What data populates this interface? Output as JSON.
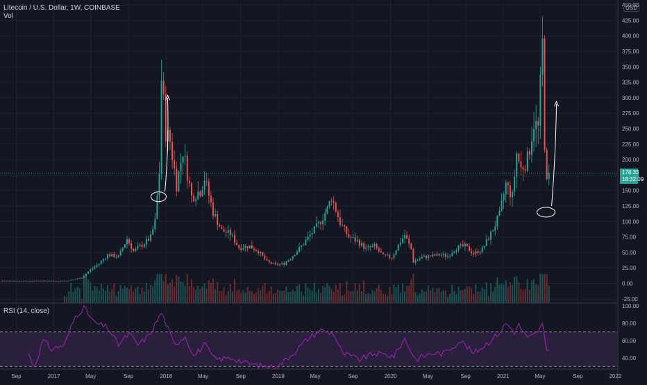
{
  "header": {
    "title": "Litecoin / U.S. Dollar, 1W, COINBASE",
    "volume_label": "Vol",
    "rsi_label": "RSI (14, close)",
    "currency": "USD"
  },
  "last_price": {
    "value": "178.33",
    "countdown": "18:32:09"
  },
  "colors": {
    "background": "#131722",
    "up": "#26a69a",
    "down": "#ef5350",
    "up_volume": "#1e6b65",
    "down_volume": "#8b3234",
    "rsi_line": "#9c27b0",
    "rsi_band": "#2a1f3d",
    "grid": "#1e222d",
    "text": "#b2b5be",
    "annotation": "#ffffff"
  },
  "chart_data": [
    {
      "type": "candlestick",
      "title": "Litecoin / U.S. Dollar, 1W, COINBASE",
      "y_axis_ticks": [
        -25,
        0,
        25,
        50,
        75,
        100,
        125,
        150,
        175,
        200,
        225,
        250,
        275,
        300,
        325,
        350,
        375,
        400,
        425,
        450
      ],
      "y_axis_tick_labels": [
        "-25.00",
        "0.00",
        "25.00",
        "50.00",
        "75.00",
        "100.00",
        "125.00",
        "150.00",
        "175.00",
        "200.00",
        "225.00",
        "250.00",
        "275.00",
        "300.00",
        "325.00",
        "350.00",
        "375.00",
        "400.00",
        "425.00",
        "450.00"
      ],
      "ylim": [
        -32,
        458
      ],
      "x_axis_ticks": [
        "Sep",
        "2017",
        "May",
        "Sep",
        "2018",
        "May",
        "Sep",
        "2019",
        "May",
        "Sep",
        "2020",
        "May",
        "Sep",
        "2021",
        "May",
        "Sep",
        "2022"
      ],
      "xlim": [
        "2016-07-10",
        "2022-01-09"
      ],
      "price_anchors": [
        {
          "date": "2016-07-17",
          "close": 4
        },
        {
          "date": "2016-10-16",
          "close": 4
        },
        {
          "date": "2017-01-15",
          "close": 4
        },
        {
          "date": "2017-02-12",
          "close": 4
        },
        {
          "date": "2017-04-02",
          "close": 9
        },
        {
          "date": "2017-04-30",
          "close": 22
        },
        {
          "date": "2017-05-28",
          "close": 32
        },
        {
          "date": "2017-06-25",
          "close": 46
        },
        {
          "date": "2017-07-30",
          "close": 43
        },
        {
          "date": "2017-08-27",
          "close": 72
        },
        {
          "date": "2017-09-17",
          "close": 52
        },
        {
          "date": "2017-10-15",
          "close": 62
        },
        {
          "date": "2017-11-12",
          "close": 74
        },
        {
          "date": "2017-11-26",
          "close": 100
        },
        {
          "date": "2017-12-10",
          "close": 180
        },
        {
          "date": "2017-12-17",
          "close": 330
        },
        {
          "date": "2017-12-24",
          "close": 290
        },
        {
          "date": "2017-12-31",
          "close": 245
        },
        {
          "date": "2018-01-14",
          "close": 230
        },
        {
          "date": "2018-02-04",
          "close": 160
        },
        {
          "date": "2018-02-25",
          "close": 215
        },
        {
          "date": "2018-03-25",
          "close": 140
        },
        {
          "date": "2018-04-22",
          "close": 150
        },
        {
          "date": "2018-05-06",
          "close": 170
        },
        {
          "date": "2018-06-03",
          "close": 115
        },
        {
          "date": "2018-07-01",
          "close": 85
        },
        {
          "date": "2018-07-29",
          "close": 80
        },
        {
          "date": "2018-08-26",
          "close": 58
        },
        {
          "date": "2018-09-30",
          "close": 60
        },
        {
          "date": "2018-10-28",
          "close": 52
        },
        {
          "date": "2018-11-25",
          "close": 35
        },
        {
          "date": "2018-12-23",
          "close": 30
        },
        {
          "date": "2019-01-20",
          "close": 32
        },
        {
          "date": "2019-02-17",
          "close": 45
        },
        {
          "date": "2019-03-17",
          "close": 60
        },
        {
          "date": "2019-04-14",
          "close": 78
        },
        {
          "date": "2019-05-12",
          "close": 95
        },
        {
          "date": "2019-06-09",
          "close": 120
        },
        {
          "date": "2019-06-23",
          "close": 140
        },
        {
          "date": "2019-07-21",
          "close": 98
        },
        {
          "date": "2019-08-18",
          "close": 75
        },
        {
          "date": "2019-09-15",
          "close": 68
        },
        {
          "date": "2019-10-13",
          "close": 56
        },
        {
          "date": "2019-11-10",
          "close": 60
        },
        {
          "date": "2019-12-08",
          "close": 44
        },
        {
          "date": "2020-01-05",
          "close": 42
        },
        {
          "date": "2020-02-02",
          "close": 68
        },
        {
          "date": "2020-02-16",
          "close": 78
        },
        {
          "date": "2020-03-08",
          "close": 55
        },
        {
          "date": "2020-03-15",
          "close": 35
        },
        {
          "date": "2020-04-12",
          "close": 42
        },
        {
          "date": "2020-05-10",
          "close": 44
        },
        {
          "date": "2020-06-07",
          "close": 46
        },
        {
          "date": "2020-07-05",
          "close": 44
        },
        {
          "date": "2020-08-02",
          "close": 58
        },
        {
          "date": "2020-08-30",
          "close": 60
        },
        {
          "date": "2020-09-27",
          "close": 48
        },
        {
          "date": "2020-10-25",
          "close": 55
        },
        {
          "date": "2020-11-22",
          "close": 80
        },
        {
          "date": "2020-12-20",
          "close": 110
        },
        {
          "date": "2021-01-10",
          "close": 160
        },
        {
          "date": "2021-01-31",
          "close": 140
        },
        {
          "date": "2021-02-14",
          "close": 210
        },
        {
          "date": "2021-02-28",
          "close": 185
        },
        {
          "date": "2021-03-21",
          "close": 200
        },
        {
          "date": "2021-04-11",
          "close": 260
        },
        {
          "date": "2021-04-25",
          "close": 250
        },
        {
          "date": "2021-05-09",
          "close": 385
        },
        {
          "date": "2021-05-16",
          "close": 230
        },
        {
          "date": "2021-05-23",
          "close": 160
        },
        {
          "date": "2021-05-30",
          "close": 178
        }
      ],
      "last_value": 178.33
    },
    {
      "type": "bar",
      "name": "Vol",
      "values_relative": "volume histogram at bottom of price pane, peaks near 2017-12 and 2021-05"
    },
    {
      "type": "line",
      "title": "RSI (14, close)",
      "y_axis_ticks": [
        40,
        60,
        80,
        100
      ],
      "y_axis_tick_labels": [
        "40.00",
        "60.00",
        "80.00",
        "100.00"
      ],
      "ylim": [
        27,
        103
      ],
      "bands": [
        30,
        70
      ],
      "anchors": [
        {
          "date": "2016-10-09",
          "value": 45
        },
        {
          "date": "2016-10-30",
          "value": 30
        },
        {
          "date": "2016-11-27",
          "value": 60
        },
        {
          "date": "2016-12-25",
          "value": 50
        },
        {
          "date": "2017-02-05",
          "value": 55
        },
        {
          "date": "2017-03-12",
          "value": 88
        },
        {
          "date": "2017-04-09",
          "value": 98
        },
        {
          "date": "2017-05-14",
          "value": 80
        },
        {
          "date": "2017-06-25",
          "value": 75
        },
        {
          "date": "2017-07-30",
          "value": 55
        },
        {
          "date": "2017-09-03",
          "value": 68
        },
        {
          "date": "2017-10-01",
          "value": 55
        },
        {
          "date": "2017-11-05",
          "value": 65
        },
        {
          "date": "2017-12-17",
          "value": 92
        },
        {
          "date": "2018-01-28",
          "value": 55
        },
        {
          "date": "2018-03-04",
          "value": 65
        },
        {
          "date": "2018-04-01",
          "value": 42
        },
        {
          "date": "2018-05-06",
          "value": 55
        },
        {
          "date": "2018-06-10",
          "value": 38
        },
        {
          "date": "2018-08-05",
          "value": 40
        },
        {
          "date": "2018-09-16",
          "value": 34
        },
        {
          "date": "2018-11-18",
          "value": 30
        },
        {
          "date": "2018-12-23",
          "value": 28
        },
        {
          "date": "2019-02-17",
          "value": 45
        },
        {
          "date": "2019-04-07",
          "value": 62
        },
        {
          "date": "2019-05-19",
          "value": 72
        },
        {
          "date": "2019-06-30",
          "value": 68
        },
        {
          "date": "2019-07-28",
          "value": 45
        },
        {
          "date": "2019-09-22",
          "value": 38
        },
        {
          "date": "2019-11-10",
          "value": 45
        },
        {
          "date": "2020-01-12",
          "value": 42
        },
        {
          "date": "2020-02-16",
          "value": 62
        },
        {
          "date": "2020-03-22",
          "value": 38
        },
        {
          "date": "2020-05-10",
          "value": 45
        },
        {
          "date": "2020-06-21",
          "value": 45
        },
        {
          "date": "2020-08-16",
          "value": 60
        },
        {
          "date": "2020-09-27",
          "value": 45
        },
        {
          "date": "2020-11-22",
          "value": 60
        },
        {
          "date": "2020-12-27",
          "value": 72
        },
        {
          "date": "2021-01-10",
          "value": 80
        },
        {
          "date": "2021-02-07",
          "value": 70
        },
        {
          "date": "2021-02-21",
          "value": 78
        },
        {
          "date": "2021-03-21",
          "value": 62
        },
        {
          "date": "2021-04-18",
          "value": 68
        },
        {
          "date": "2021-05-09",
          "value": 78
        },
        {
          "date": "2021-05-23",
          "value": 45
        },
        {
          "date": "2021-05-30",
          "value": 50
        }
      ]
    }
  ]
}
